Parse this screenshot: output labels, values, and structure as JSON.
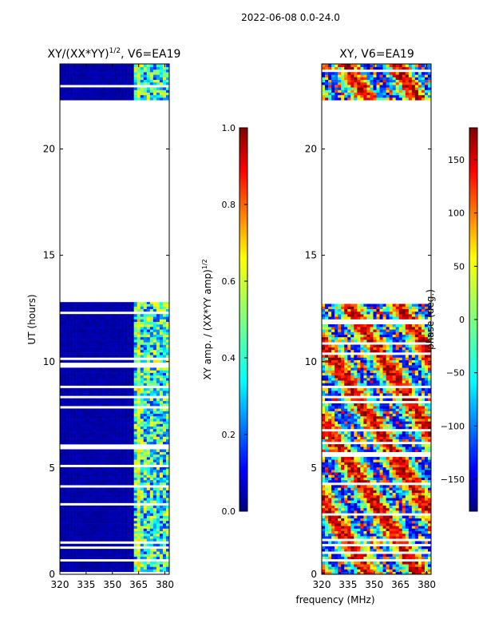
{
  "figure": {
    "suptitle": "2022-06-08 0.0-24.0",
    "shared_xlabel": "frequency (MHz)"
  },
  "chart_data": [
    {
      "type": "heatmap",
      "title_main": "XY/(XX*YY)",
      "title_exp": "1/2",
      "title_tail": ", V6=EA19",
      "xlabel": "",
      "ylabel": "UT (hours)",
      "xlim": [
        320,
        382.5
      ],
      "ylim": [
        0,
        24
      ],
      "xticks": [
        320,
        335,
        350,
        365,
        380
      ],
      "yticks": [
        0,
        5,
        10,
        15,
        20
      ],
      "data_bands_hours": [
        [
          0,
          12.8
        ],
        [
          22.3,
          24
        ]
      ],
      "colorbar": {
        "label_main": "XY amp. / (XX*YY amp)",
        "label_exp": "1/2",
        "range": [
          0.0,
          1.0
        ],
        "ticks": [
          "0.0",
          "0.2",
          "0.4",
          "0.6",
          "0.8",
          "1.0"
        ]
      }
    },
    {
      "type": "heatmap",
      "title_main": "XY, V6=EA19",
      "xlabel": "frequency (MHz)",
      "ylabel": "",
      "xlim": [
        320,
        382.5
      ],
      "ylim": [
        0,
        24
      ],
      "xticks": [
        320,
        335,
        350,
        365,
        380
      ],
      "yticks": [
        0,
        5,
        10,
        15,
        20
      ],
      "data_bands_hours": [
        [
          0,
          12.8
        ],
        [
          22.3,
          24
        ]
      ],
      "colorbar": {
        "label_main": "phase (deg.)",
        "range": [
          -180,
          180
        ],
        "ticks": [
          "−150",
          "−100",
          "−50",
          "0",
          "50",
          "100",
          "150"
        ]
      }
    }
  ],
  "colors": {
    "jet": [
      "#00007f",
      "#0000ff",
      "#007fff",
      "#00ffff",
      "#7fff7f",
      "#ffff00",
      "#ff7f00",
      "#ff0000",
      "#7f0000"
    ]
  }
}
